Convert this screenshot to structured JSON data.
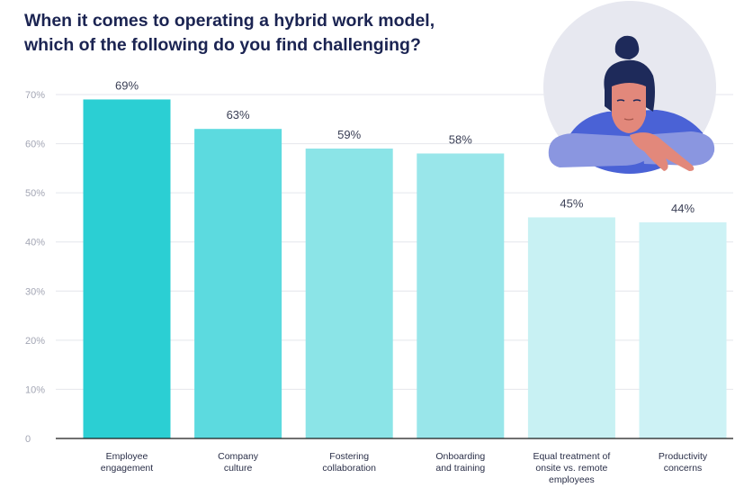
{
  "title_lines": [
    "When it comes to operating a hybrid work model,",
    "which of the following do you find challenging?"
  ],
  "chart_data": {
    "type": "bar",
    "title": "When it comes to operating a hybrid work model, which of the following do you find challenging?",
    "categories": [
      [
        "Employee",
        "engagement"
      ],
      [
        "Company",
        "culture"
      ],
      [
        "Fostering",
        "collaboration"
      ],
      [
        "Onboarding",
        "and training"
      ],
      [
        "Equal treatment of",
        "onsite vs. remote",
        "employees"
      ],
      [
        "Productivity",
        "concerns"
      ]
    ],
    "values": [
      69,
      63,
      59,
      58,
      45,
      44
    ],
    "value_labels": [
      "69%",
      "63%",
      "59%",
      "58%",
      "45%",
      "44%"
    ],
    "bar_colors": [
      "#2bcfd3",
      "#5cdadf",
      "#8be4e7",
      "#99e6ea",
      "#c8f1f3",
      "#cdf2f5"
    ],
    "yticks": [
      0,
      10,
      20,
      30,
      40,
      50,
      60,
      70
    ],
    "ytick_labels": [
      "0",
      "10%",
      "20%",
      "30%",
      "40%",
      "50%",
      "60%",
      "70%"
    ],
    "ylim": [
      0,
      70
    ],
    "grid": true,
    "grid_color": "#e4e6ec"
  },
  "illustration": {
    "name": "person-resting-chin-illustration",
    "colors": {
      "circle": "#e7e8f0",
      "hair": "#1e2a5a",
      "skin": "#e2887b",
      "shirt": "#4a62d6",
      "sleeve": "#8a96e0"
    }
  }
}
